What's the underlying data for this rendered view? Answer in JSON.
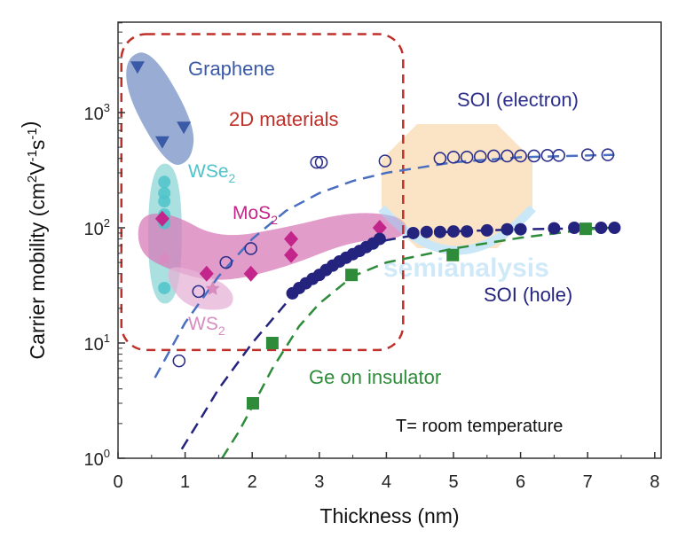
{
  "chart_data": {
    "type": "scatter",
    "title": "",
    "xlabel": "Thickness (nm)",
    "ylabel": {
      "base": "Carrier mobility (cm",
      "parts": [
        [
          "2",
          ""
        ],
        [
          "V",
          ""
        ],
        [
          "-1",
          ""
        ],
        [
          "s",
          ""
        ],
        [
          "-1",
          ""
        ]
      ],
      "text": "Carrier mobility (cm2V-1s-1)"
    },
    "xlim": [
      0,
      8.1
    ],
    "ylim": [
      1,
      6000
    ],
    "yscale": "log",
    "x_ticks": [
      "0",
      "1",
      "2",
      "3",
      "4",
      "5",
      "6",
      "7",
      "8"
    ],
    "y_ticks": [
      {
        "base": "10",
        "exp": "0",
        "value": 1
      },
      {
        "base": "10",
        "exp": "1",
        "value": 10
      },
      {
        "base": "10",
        "exp": "2",
        "value": 100
      },
      {
        "base": "10",
        "exp": "3",
        "value": 1000
      }
    ],
    "grid": false,
    "colors": {
      "graphene": "#3a5aa8",
      "graphene_fill": "#7590c6",
      "wse2": "#4ec3c9",
      "wse2_fill": "#8dd6d6",
      "mos2": "#c2268a",
      "mos2_fill": "#d77bb8",
      "ws2": "#d98bc0",
      "ws2_fill": "#e6b3d6",
      "soi_electron": "#2c2f8c",
      "soi_electron_fit": "#4a6fc0",
      "soi_hole": "#24237e",
      "ge": "#2e8b3a",
      "box": "#c0302a"
    },
    "series": [
      {
        "name": "Graphene",
        "marker": "triangle-down",
        "color": "#3a5aa8",
        "x": [
          0.29,
          0.66,
          0.98
        ],
        "y": [
          2500,
          560,
          750
        ]
      },
      {
        "name": "WSe2",
        "marker": "hexagon",
        "color": "#4ec3c9",
        "x": [
          0.69,
          0.69,
          0.69,
          0.69,
          0.69,
          0.69
        ],
        "y": [
          250,
          200,
          170,
          130,
          110,
          30
        ]
      },
      {
        "name": "MoS2",
        "marker": "diamond",
        "color": "#c2268a",
        "x": [
          0.66,
          1.32,
          1.98,
          2.58,
          2.58,
          3.9
        ],
        "y": [
          120,
          40,
          40,
          80,
          58,
          100
        ]
      },
      {
        "name": "WS2",
        "marker": "star",
        "color": "#d98bc0",
        "x": [
          0.69,
          1.41
        ],
        "y": [
          55,
          30
        ]
      },
      {
        "name": "SOI (electron)",
        "marker": "open-circle",
        "color": "#2c2f8c",
        "x": [
          0.91,
          1.2,
          1.61,
          1.98,
          2.96,
          3.03,
          3.98,
          4.8,
          5.0,
          5.2,
          5.4,
          5.6,
          5.8,
          6.0,
          6.2,
          6.4,
          6.57,
          7.0,
          7.3
        ],
        "y": [
          7,
          28,
          50,
          66,
          370,
          370,
          380,
          400,
          410,
          410,
          415,
          420,
          420,
          420,
          420,
          425,
          425,
          430,
          430
        ]
      },
      {
        "name": "SOI (hole)",
        "marker": "filled-circle",
        "color": "#24237e",
        "x": [
          2.6,
          2.7,
          2.8,
          2.9,
          3.0,
          3.1,
          3.2,
          3.3,
          3.4,
          3.5,
          3.6,
          3.7,
          3.8,
          3.9,
          4.4,
          4.6,
          4.8,
          5.0,
          5.2,
          5.5,
          5.8,
          6.0,
          6.5,
          6.8,
          7.2,
          7.4
        ],
        "y": [
          27,
          30,
          33,
          36,
          39,
          43,
          47,
          51,
          55,
          59,
          63,
          68,
          73,
          80,
          90,
          92,
          92,
          93,
          93,
          95,
          97,
          97,
          99,
          100,
          100,
          100
        ]
      },
      {
        "name": "Ge on insulator",
        "marker": "square",
        "color": "#2e8b3a",
        "x": [
          2.01,
          2.3,
          3.48,
          4.99,
          6.97
        ],
        "y": [
          3,
          10,
          39,
          58,
          98
        ]
      }
    ],
    "fits": [
      {
        "name": "SOI (electron) fit",
        "color": "#4a6fc0",
        "x": [
          0.55,
          1,
          1.5,
          2,
          2.5,
          3,
          3.5,
          4,
          5,
          6,
          7.4
        ],
        "y": [
          5,
          15,
          38,
          80,
          140,
          200,
          255,
          300,
          370,
          410,
          430
        ]
      },
      {
        "name": "SOI (hole) fit",
        "color": "#24237e",
        "x": [
          0.95,
          1.25,
          1.5,
          2,
          2.5,
          3,
          3.5,
          4,
          4.5,
          5,
          6,
          7.4
        ],
        "y": [
          1.2,
          2.3,
          4,
          10,
          22,
          42,
          62,
          78,
          88,
          93,
          97,
          100
        ]
      },
      {
        "name": "Ge on insulator fit",
        "color": "#2e8b3a",
        "x": [
          1.55,
          1.8,
          2,
          2.3,
          2.7,
          3,
          3.5,
          4,
          5,
          6,
          7,
          7.3
        ],
        "y": [
          1,
          1.7,
          2.8,
          6,
          14,
          22,
          38,
          50,
          66,
          82,
          97,
          100
        ]
      }
    ],
    "regions": [
      {
        "name": "graphene-region",
        "fill": "#7590c6",
        "x": [
          0.1,
          0.5,
          1.15,
          1.1,
          0.75,
          0.15
        ],
        "y": [
          3000,
          3600,
          800,
          380,
          330,
          1300
        ]
      },
      {
        "name": "wse2-region",
        "fill": "#8dd6d6",
        "x": [
          0.45,
          0.95,
          0.95,
          0.45
        ],
        "y": [
          360,
          360,
          22,
          22
        ]
      },
      {
        "name": "mos2-region",
        "fill": "#d77bb8",
        "x": [
          0.3,
          0.8,
          1.5,
          2.5,
          3.5,
          4.3,
          4.3,
          3.5,
          2.5,
          1.5,
          0.8,
          0.3
        ],
        "y": [
          130,
          135,
          80,
          100,
          140,
          125,
          80,
          78,
          45,
          33,
          42,
          60
        ]
      },
      {
        "name": "ws2-region",
        "fill": "#e6b3d6",
        "x": [
          0.75,
          1.5,
          1.75,
          1.65,
          1.05,
          0.75
        ],
        "y": [
          50,
          36,
          26,
          19,
          20,
          32
        ]
      }
    ],
    "box_2d": {
      "label": "2D materials",
      "x": [
        0.05,
        4.25
      ],
      "y": [
        8.7,
        4800
      ]
    },
    "annotations": [
      {
        "text": "Graphene",
        "sub": "",
        "color": "#3a5aa8"
      },
      {
        "text": "2D materials",
        "sub": "",
        "color": "#c0302a"
      },
      {
        "text": "WSe",
        "sub": "2",
        "color": "#4ec3c9"
      },
      {
        "text": "MoS",
        "sub": "2",
        "color": "#c2268a"
      },
      {
        "text": "WS",
        "sub": "2",
        "color": "#d98bc0"
      },
      {
        "text": "SOI (electron)",
        "sub": "",
        "color": "#2c2f8c"
      },
      {
        "text": "SOI (hole)",
        "sub": "",
        "color": "#24237e"
      },
      {
        "text": "Ge on insulator",
        "sub": "",
        "color": "#2e8b3a"
      },
      {
        "text": "T= room temperature",
        "sub": "",
        "color": "#111111"
      }
    ],
    "watermark": "semianalysis"
  }
}
